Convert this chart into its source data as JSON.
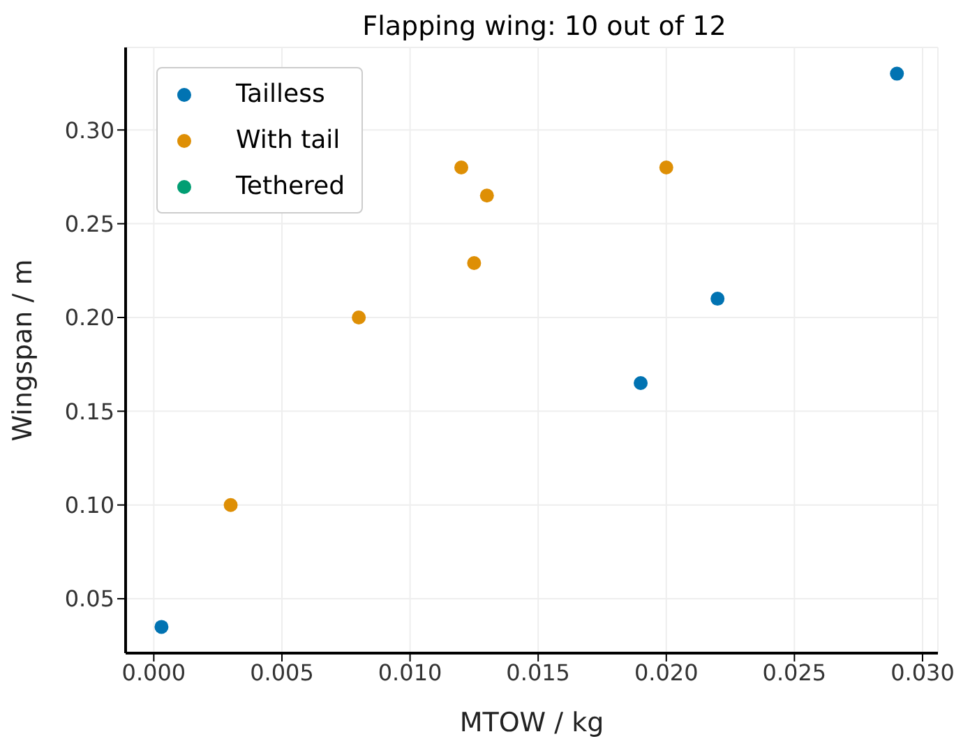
{
  "chart_data": {
    "type": "scatter",
    "title": "Flapping wing: 10 out of 12",
    "xlabel": "MTOW / kg",
    "ylabel": "Wingspan / m",
    "series": [
      {
        "name": "Tailless",
        "color": "#0173b2",
        "x": [
          0.0003,
          0.019,
          0.022,
          0.029
        ],
        "values": [
          0.035,
          0.165,
          0.21,
          0.33
        ]
      },
      {
        "name": "With tail",
        "color": "#de8f05",
        "x": [
          0.003,
          0.008,
          0.012,
          0.0125,
          0.013,
          0.02
        ],
        "values": [
          0.1,
          0.2,
          0.28,
          0.229,
          0.265,
          0.28
        ]
      },
      {
        "name": "Tethered",
        "color": "#029e73"
      }
    ],
    "xlim": [
      -0.0011,
      0.0306
    ],
    "ylim": [
      0.021,
      0.344
    ],
    "xticks": [
      {
        "value": 0,
        "label": "0.000"
      },
      {
        "value": 0.005,
        "label": "0.005"
      },
      {
        "value": 0.01,
        "label": "0.010"
      },
      {
        "value": 0.015,
        "label": "0.015"
      },
      {
        "value": 0.02,
        "label": "0.020"
      },
      {
        "value": 0.025,
        "label": "0.025"
      },
      {
        "value": 0.03,
        "label": "0.030"
      }
    ],
    "yticks": [
      {
        "value": 0.05,
        "label": "0.05"
      },
      {
        "value": 0.1,
        "label": "0.10"
      },
      {
        "value": 0.15,
        "label": "0.15"
      },
      {
        "value": 0.2,
        "label": "0.20"
      },
      {
        "value": 0.25,
        "label": "0.25"
      },
      {
        "value": 0.3,
        "label": "0.30"
      }
    ],
    "grid": true,
    "legend": "top left",
    "marker": "circle"
  }
}
